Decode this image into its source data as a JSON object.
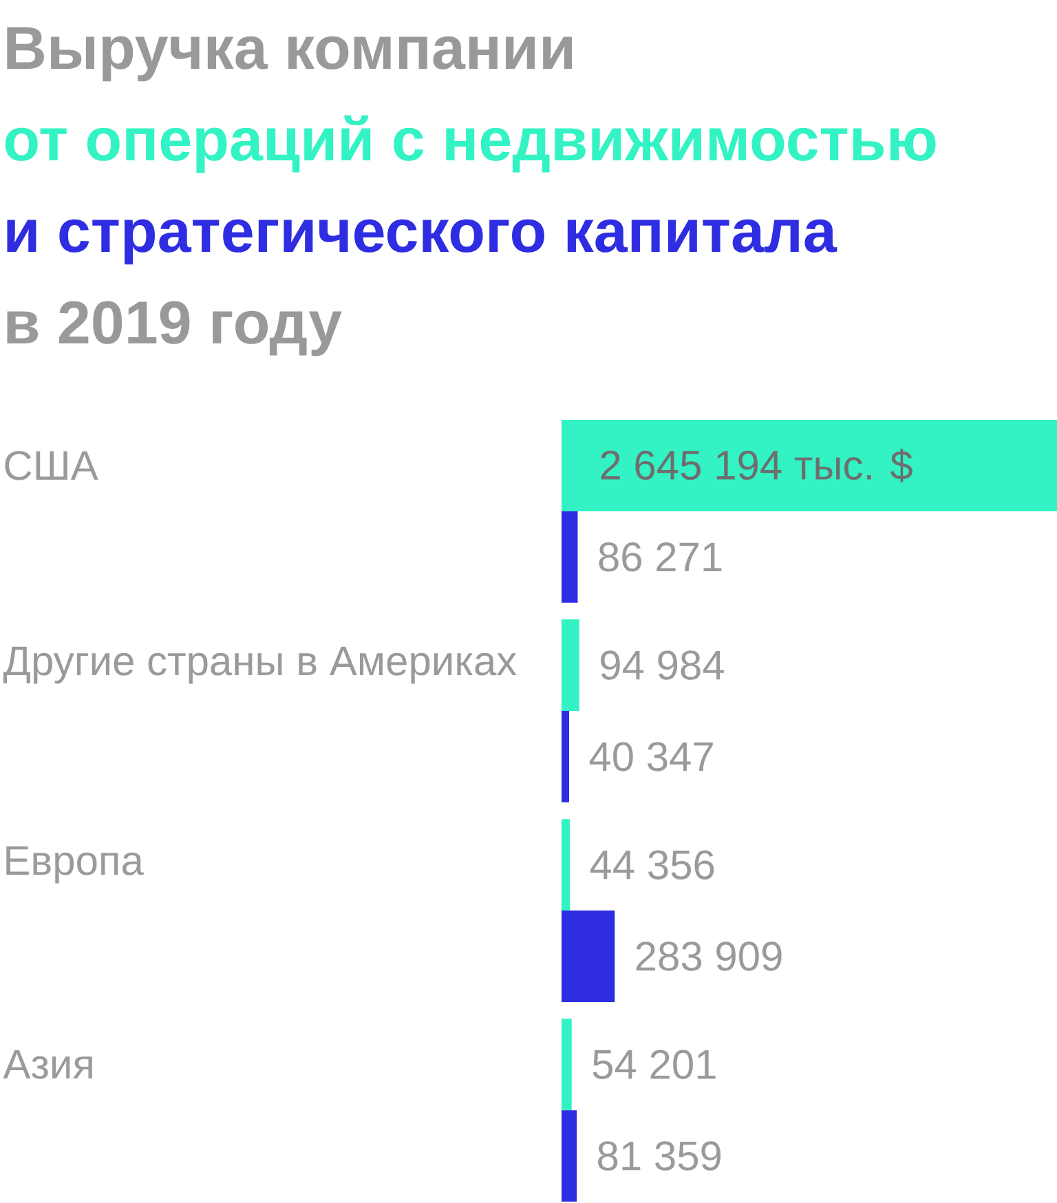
{
  "chart_data": {
    "type": "bar",
    "orientation": "horizontal",
    "title": "Выручка компании",
    "subtitle": "в 2019 году",
    "categories": [
      "США",
      "Другие страны в Америках",
      "Европа",
      "Азия"
    ],
    "series": [
      {
        "name": "от операций с недвижимостью",
        "color": "#33f3c4",
        "values": [
          2645194,
          94984,
          44356,
          54201
        ],
        "value_labels": [
          "2 645 194 тыс. $",
          "94 984",
          "44 356",
          "54 201"
        ]
      },
      {
        "name": "и стратегического капитала",
        "color": "#2e2de2",
        "values": [
          86271,
          40347,
          283909,
          81359
        ],
        "value_labels": [
          "86 271",
          "40 347",
          "283 909",
          "81 359"
        ]
      }
    ]
  }
}
